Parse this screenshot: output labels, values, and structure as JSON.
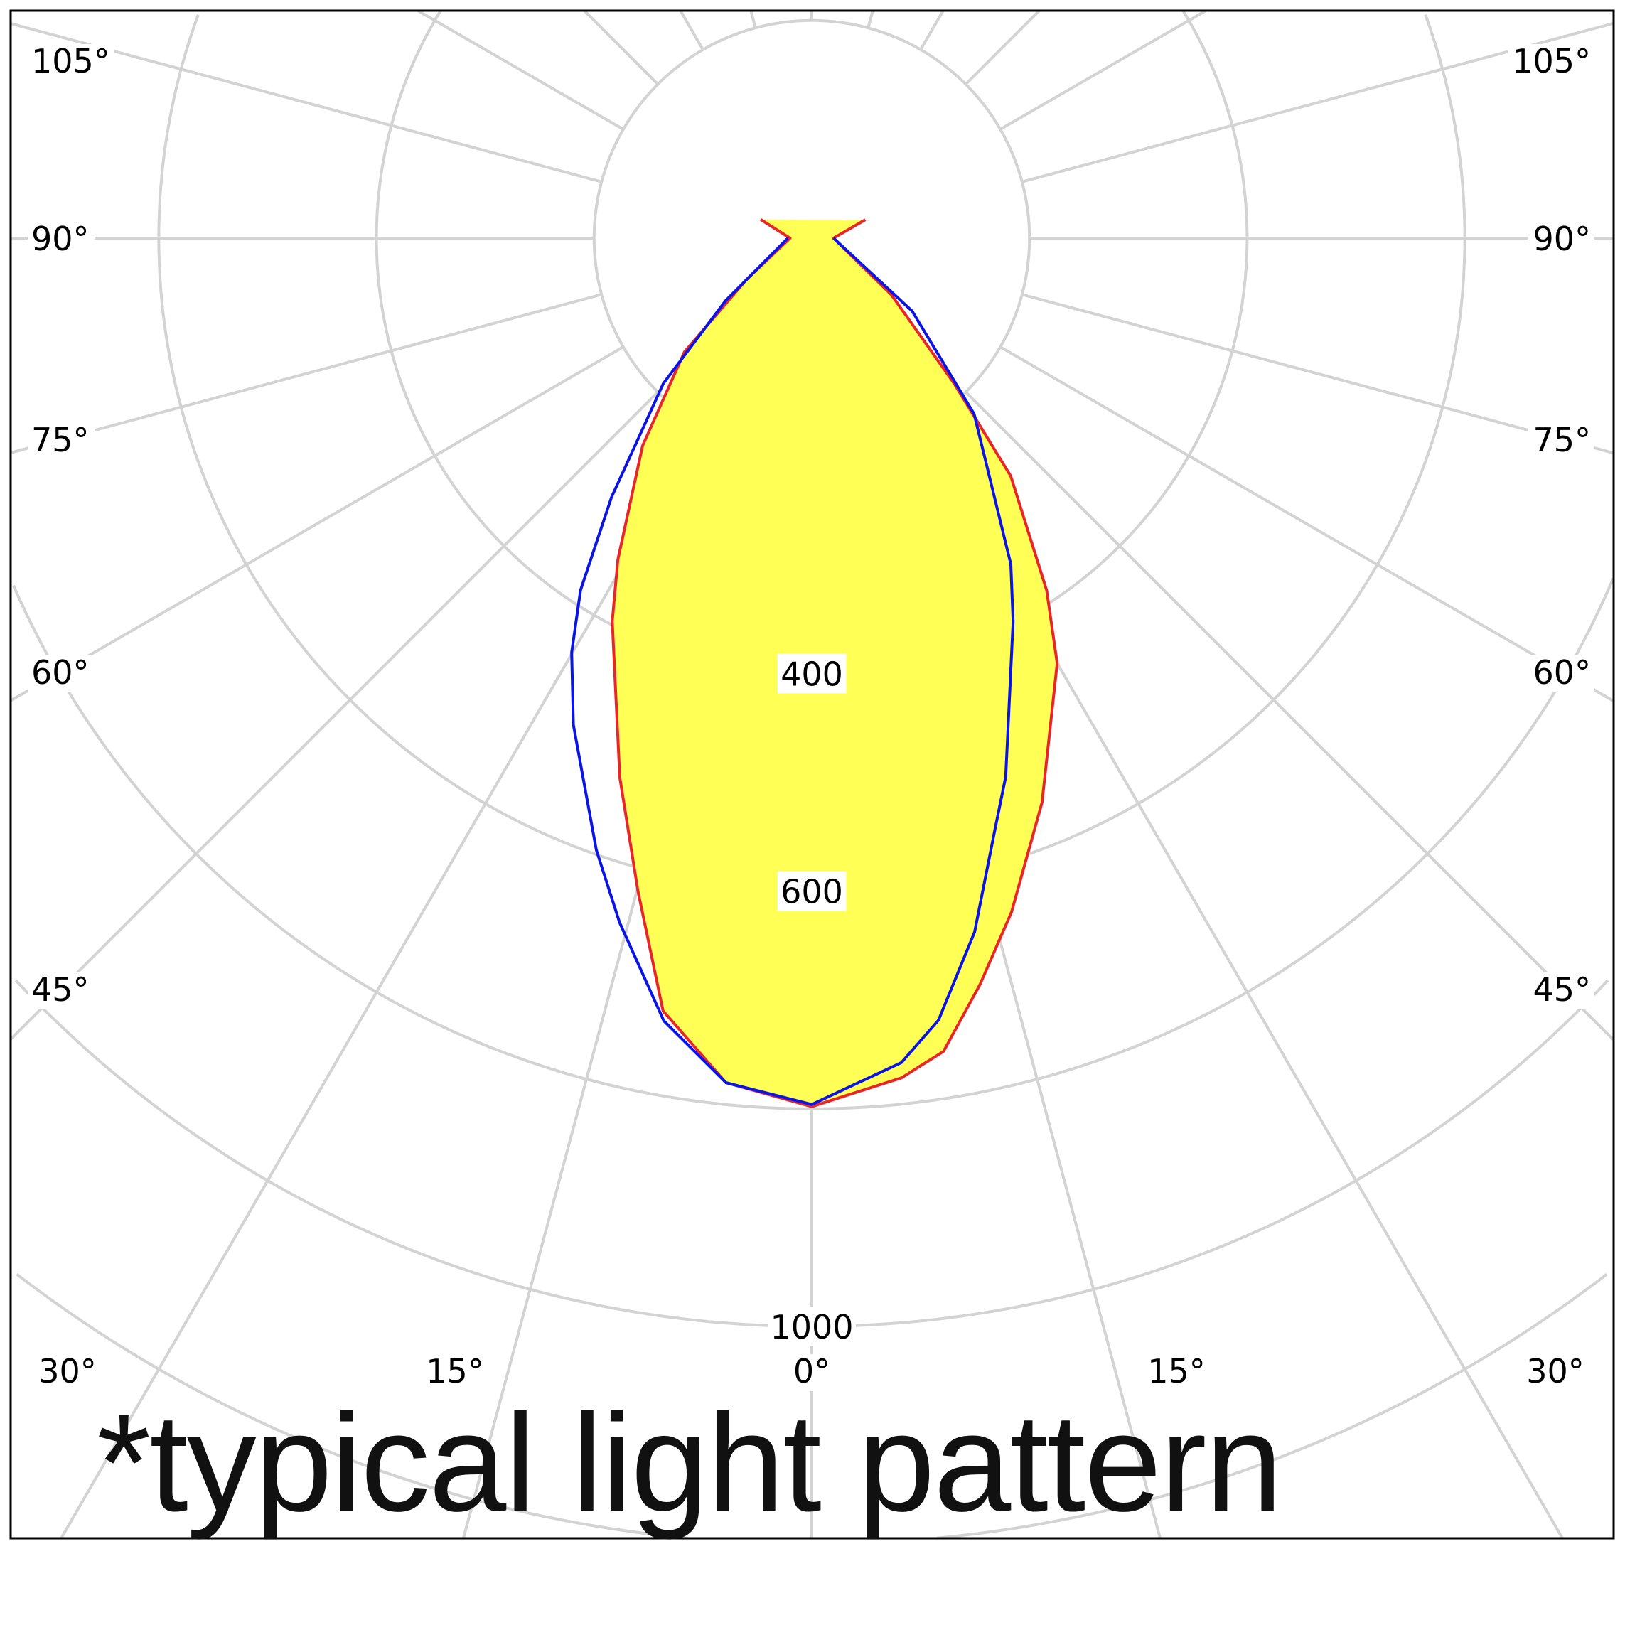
{
  "chart_data": {
    "type": "polar",
    "orientation": "0° points down (nadir)",
    "radial_ticks": [
      200,
      400,
      600,
      800,
      1000,
      1200,
      1400,
      1600,
      1800,
      2000
    ],
    "radial_tick_labels": [
      "400",
      "600",
      "1000"
    ],
    "angular_step_deg": 15,
    "angle_labels_left": [
      "105°",
      "90°",
      "75°",
      "60°",
      "45°"
    ],
    "angle_labels_right": [
      "105°",
      "90°",
      "75°",
      "60°",
      "45°"
    ],
    "angle_labels_bottom": [
      "30°",
      "15°",
      "0°",
      "15°",
      "30°"
    ],
    "grid": true,
    "grid_color": "#d3d3d3",
    "series": [
      {
        "color": "#e8262a",
        "fill": "#ffff55",
        "points": [
          [
            -110,
            50
          ],
          [
            -90,
            20
          ],
          [
            -57.6,
            71
          ],
          [
            -48.2,
            157
          ],
          [
            -39.2,
            246
          ],
          [
            -31.1,
            345
          ],
          [
            -27.5,
            397
          ],
          [
            -19.6,
            526
          ],
          [
            -14.9,
            621
          ],
          [
            -10.9,
            723
          ],
          [
            -5.8,
            780
          ],
          [
            0,
            798
          ],
          [
            6.1,
            776
          ],
          [
            9.2,
            757
          ],
          [
            12.7,
            703
          ],
          [
            16.5,
            646
          ],
          [
            22.2,
            560
          ],
          [
            30,
            451
          ],
          [
            33.7,
            389
          ],
          [
            39.9,
            285
          ],
          [
            44.4,
            187
          ],
          [
            54.5,
            90
          ],
          [
            90,
            20
          ],
          [
            109,
            52
          ]
        ]
      },
      {
        "color": "#0a14e6",
        "points": [
          [
            -90,
            22
          ],
          [
            -54,
            98
          ],
          [
            -45.6,
            191
          ],
          [
            -37.7,
            301
          ],
          [
            -33.3,
            387
          ],
          [
            -30.1,
            440
          ],
          [
            -26.1,
            498
          ],
          [
            -19.4,
            596
          ],
          [
            -15.7,
            653
          ],
          [
            -10.7,
            732
          ],
          [
            -5.8,
            780
          ],
          [
            0,
            796
          ],
          [
            6.2,
            762
          ],
          [
            9.2,
            728
          ],
          [
            13.2,
            655
          ],
          [
            17.2,
            569
          ],
          [
            19.8,
            526
          ],
          [
            27.7,
            398
          ],
          [
            31.4,
            351
          ],
          [
            42.7,
            220
          ],
          [
            54,
            114
          ],
          [
            90,
            20
          ]
        ]
      }
    ]
  },
  "note": "*typical light pattern"
}
